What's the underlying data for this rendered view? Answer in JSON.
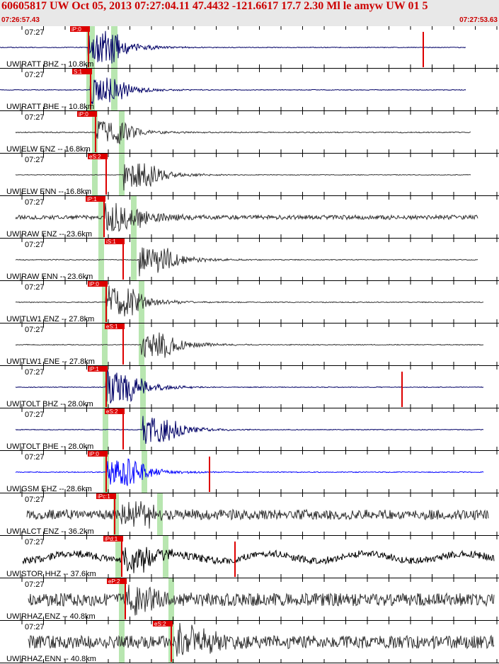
{
  "header": {
    "title": "60605817 UW Oct 05, 2013 07:27:04.11   47.4432 -121.6617 17.7 2.30 Ml le amyw UW 01   5",
    "start_time": "07:26:57.43",
    "end_time": "07:27:53.63"
  },
  "traces": [
    {
      "station": "UW|RATT BHZ -- 10.8km",
      "time": "07:27",
      "pick": "iP:0",
      "color": "#000066",
      "seed": 1
    },
    {
      "station": "UW|RATT BHE -- 10.8km",
      "time": "07:27",
      "pick": "S:1",
      "color": "#000066",
      "seed": 2
    },
    {
      "station": "UW|ELW ENZ -- 16.8km",
      "time": "07:27",
      "pick": "iP:0",
      "color": "#333333",
      "seed": 3
    },
    {
      "station": "UW|ELW ENN -- 16.8km",
      "time": "07:27",
      "pick": "eS:2",
      "color": "#333333",
      "seed": 4
    },
    {
      "station": "UW|RAW ENZ -- 23.6km",
      "time": "07:27",
      "pick": "iP:1",
      "color": "#333333",
      "seed": 5
    },
    {
      "station": "UW|RAW ENN -- 23.6km",
      "time": "07:27",
      "pick": "iS:1",
      "color": "#333333",
      "seed": 6
    },
    {
      "station": "UW|TLW1 ENZ -- 27.8km",
      "time": "07:27",
      "pick": "iP:0",
      "color": "#333333",
      "seed": 7
    },
    {
      "station": "UW|TLW1 ENE -- 27.8km",
      "time": "07:27",
      "pick": "eS:1",
      "color": "#333333",
      "seed": 8
    },
    {
      "station": "UW|TOLT BHZ -- 28.0km",
      "time": "07:27",
      "pick": "iP:1",
      "color": "#000066",
      "seed": 9
    },
    {
      "station": "UW|TOLT BHE -- 28.0km",
      "time": "07:27",
      "pick": "eS:2",
      "color": "#000066",
      "seed": 10
    },
    {
      "station": "UW|GSM EHZ -- 28.6km",
      "time": "07:27",
      "pick": "iP:0",
      "color": "#0000ff",
      "seed": 11
    },
    {
      "station": "UW|ALCT ENZ -- 36.2km",
      "time": "07:27",
      "pick": "iPc:1",
      "color": "#333333",
      "seed": 12
    },
    {
      "station": "UW|STOR HHZ -- 37.6km",
      "time": "07:27",
      "pick": "iPd:1",
      "color": "#000000",
      "seed": 13
    },
    {
      "station": "UW|RHAZ ENZ -- 40.8km",
      "time": "07:27",
      "pick": "eP:2",
      "color": "#333333",
      "seed": 14
    },
    {
      "station": "UW|RHAZ ENN -- 40.8km",
      "time": "07:27",
      "pick": "eS:2",
      "color": "#333333",
      "seed": 15
    }
  ],
  "colors": {
    "pick_flag": "#dd0000",
    "window_band": "#b8e6b0",
    "tick": "#000000"
  }
}
